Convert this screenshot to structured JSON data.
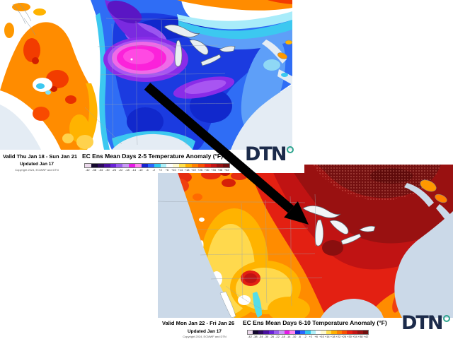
{
  "top_map": {
    "valid": "Valid Thu Jan 18 - Sun Jan 21",
    "title": "EC Ens Mean Days 2-5 Temperature Anomaly (°F)",
    "updated": "Updated Jan 17",
    "copyright": "Copyright 2024, ECMWF and DTN",
    "logo_text": "DTN"
  },
  "bottom_map": {
    "valid": "Valid Mon Jan 22 - Fri Jan 26",
    "title": "EC Ens Mean Days 6-10 Temperature Anomaly (°F)",
    "updated": "Updated Jan 17",
    "copyright": "Copyright 2024, ECMWF and DTN",
    "logo_text": "DTN"
  },
  "colorbar": {
    "ticks": [
      "-42",
      "-38",
      "-34",
      "-30",
      "-26",
      "-22",
      "-18",
      "-14",
      "-10",
      "-6",
      "-2",
      "+2",
      "+6",
      "+10",
      "+14",
      "+18",
      "+22",
      "+26",
      "+30",
      "+34",
      "+38",
      "+42"
    ],
    "colors": [
      "#ecd9ec",
      "#14082e",
      "#2d0a5e",
      "#4a10a0",
      "#6a22d8",
      "#9a5cf0",
      "#c79af5",
      "#e619e6",
      "#ff85f0",
      "#1523cf",
      "#2a65ff",
      "#2fc8f0",
      "#aef0fa",
      "#ffffff",
      "#fffad2",
      "#ffe04d",
      "#ffb000",
      "#ff8000",
      "#fa5000",
      "#ea1f10",
      "#c41414",
      "#971111",
      "#700e0e"
    ]
  },
  "colors": {
    "logo_navy": "#1c2b4a",
    "logo_teal": "#2fa58e",
    "ocean_top_map": "#e4ecf4",
    "ocean_bottom_map": "#cbd9e8",
    "cold_core_magenta": "#fb22da",
    "warm_core_maroon": "#731010",
    "arrow": "#000000"
  }
}
